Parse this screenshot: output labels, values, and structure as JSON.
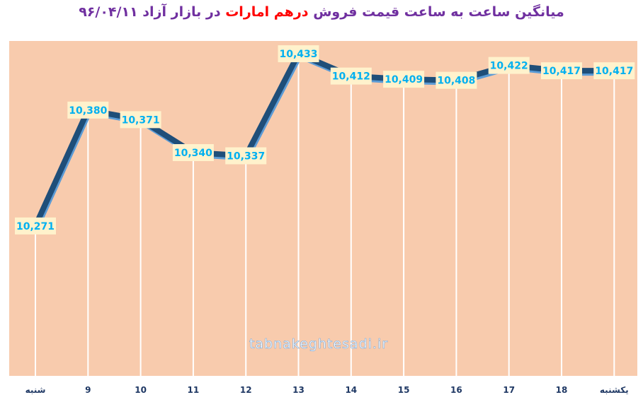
{
  "title": {
    "part1": "میانگین ساعت به ساعت قیمت فروش",
    "part2": "درهم امارات",
    "part3": "در بازار آزاد",
    "part4": "۹۶/۰۴/۱۱"
  },
  "watermark": "tabnakeghtesadi.ir",
  "colors": {
    "plot_bg": "#f8cbad",
    "line": "#1f4e79",
    "line_shadow": "#5b9bd5",
    "label_box": "#fff2cc",
    "label_text": "#00b0f0",
    "title_purple": "#7030a0",
    "title_red": "#ff0000"
  },
  "chart_data": {
    "type": "line",
    "categories": [
      "شنبه",
      "9",
      "10",
      "11",
      "12",
      "13",
      "14",
      "15",
      "16",
      "17",
      "18",
      "یکشنبه"
    ],
    "values": [
      10271,
      10380,
      10371,
      10340,
      10337,
      10433,
      10412,
      10409,
      10408,
      10422,
      10417,
      10417
    ],
    "value_labels": [
      "10,271",
      "10,380",
      "10,371",
      "10,340",
      "10,337",
      "10,433",
      "10,412",
      "10,409",
      "10,408",
      "10,422",
      "10,417",
      "10,417"
    ],
    "title": "میانگین ساعت به ساعت قیمت فروش درهم امارات در بازار آزاد ۹۶/۰۴/۱۱",
    "xlabel": "",
    "ylabel": "",
    "ylim": [
      10130,
      10445
    ],
    "grid": false,
    "drop_lines": true,
    "legend": "none"
  }
}
